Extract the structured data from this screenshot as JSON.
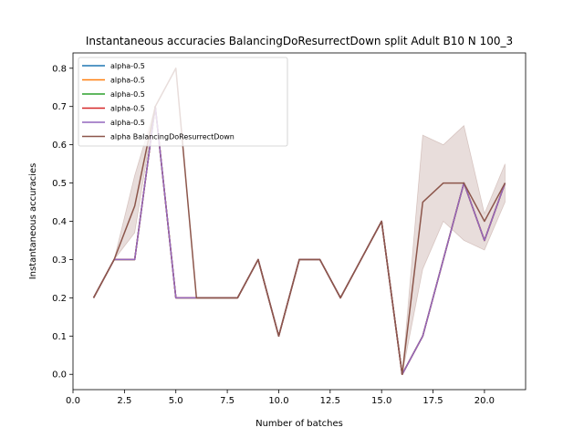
{
  "chart_data": {
    "type": "line",
    "title": "Instantaneous accuracies BalancingDoResurrectDown split Adult B10 N 100_3",
    "xlabel": "Number of batches",
    "ylabel": "Instantaneous accuracies",
    "xlim": [
      0.0,
      22.0
    ],
    "ylim": [
      -0.04,
      0.84
    ],
    "xticks": [
      0.0,
      2.5,
      5.0,
      7.5,
      10.0,
      12.5,
      15.0,
      17.5,
      20.0
    ],
    "xtick_labels": [
      "0.0",
      "2.5",
      "5.0",
      "7.5",
      "10.0",
      "12.5",
      "15.0",
      "17.5",
      "20.0"
    ],
    "yticks": [
      0.0,
      0.1,
      0.2,
      0.3,
      0.4,
      0.5,
      0.6,
      0.7,
      0.8
    ],
    "ytick_labels": [
      "0.0",
      "0.1",
      "0.2",
      "0.3",
      "0.4",
      "0.5",
      "0.6",
      "0.7",
      "0.8"
    ],
    "grid": false,
    "legend_position": "top-left",
    "x": [
      1,
      2,
      3,
      4,
      5,
      6,
      7,
      8,
      9,
      10,
      11,
      12,
      13,
      14,
      15,
      16,
      17,
      18,
      19,
      20,
      21
    ],
    "series": [
      {
        "name": "alpha-0.5",
        "color": "#1f77b4",
        "values": [
          0.2,
          0.3,
          0.3,
          0.7,
          0.2,
          0.2,
          0.2,
          0.2,
          0.3,
          0.1,
          0.3,
          0.3,
          0.2,
          0.3,
          0.4,
          0.0,
          0.1,
          0.3,
          0.5,
          0.35,
          0.5
        ]
      },
      {
        "name": "alpha-0.5",
        "color": "#ff7f0e",
        "values": [
          0.2,
          0.3,
          0.3,
          0.7,
          0.2,
          0.2,
          0.2,
          0.2,
          0.3,
          0.1,
          0.3,
          0.3,
          0.2,
          0.3,
          0.4,
          0.0,
          0.1,
          0.3,
          0.5,
          0.35,
          0.5
        ]
      },
      {
        "name": "alpha-0.5",
        "color": "#2ca02c",
        "values": [
          0.2,
          0.3,
          0.3,
          0.7,
          0.2,
          0.2,
          0.2,
          0.2,
          0.3,
          0.1,
          0.3,
          0.3,
          0.2,
          0.3,
          0.4,
          0.0,
          0.1,
          0.3,
          0.5,
          0.35,
          0.5
        ]
      },
      {
        "name": "alpha-0.5",
        "color": "#d62728",
        "values": [
          0.2,
          0.3,
          0.3,
          0.7,
          0.2,
          0.2,
          0.2,
          0.2,
          0.3,
          0.1,
          0.3,
          0.3,
          0.2,
          0.3,
          0.4,
          0.0,
          0.1,
          0.3,
          0.5,
          0.35,
          0.5
        ]
      },
      {
        "name": "alpha-0.5",
        "color": "#9467bd",
        "values": [
          0.2,
          0.3,
          0.3,
          0.7,
          0.2,
          0.2,
          0.2,
          0.2,
          0.3,
          0.1,
          0.3,
          0.3,
          0.2,
          0.3,
          0.4,
          0.0,
          0.1,
          0.3,
          0.5,
          0.35,
          0.5
        ]
      },
      {
        "name": "alpha BalancingDoResurrectDown",
        "color": "#8c564b",
        "values": [
          0.2,
          0.3,
          0.44,
          0.7,
          0.8,
          0.2,
          0.2,
          0.2,
          0.3,
          0.1,
          0.3,
          0.3,
          0.2,
          0.3,
          0.4,
          0.0,
          0.45,
          0.5,
          0.5,
          0.4,
          0.5
        ],
        "band_upper": [
          0.2,
          0.3,
          0.52,
          0.7,
          0.8,
          0.2,
          0.2,
          0.2,
          0.3,
          0.1,
          0.3,
          0.3,
          0.2,
          0.3,
          0.4,
          0.0,
          0.625,
          0.6,
          0.65,
          0.42,
          0.55
        ],
        "band_lower": [
          0.2,
          0.3,
          0.37,
          0.7,
          0.8,
          0.2,
          0.2,
          0.2,
          0.3,
          0.1,
          0.3,
          0.3,
          0.2,
          0.3,
          0.4,
          0.0,
          0.275,
          0.4,
          0.35,
          0.325,
          0.45
        ]
      }
    ]
  }
}
